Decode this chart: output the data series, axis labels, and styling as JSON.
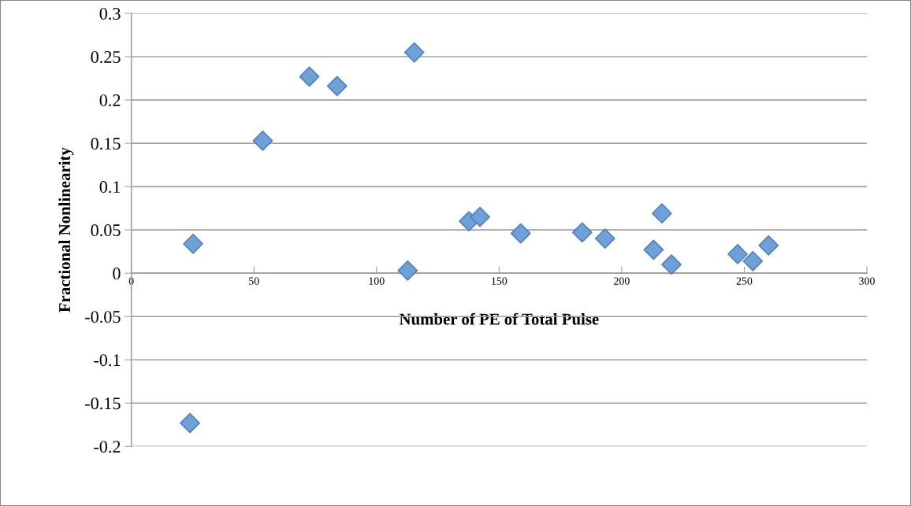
{
  "chart_data": {
    "type": "scatter",
    "xlabel": "Number of PE of Total Pulse",
    "ylabel": "Fractional Nonlinearity",
    "x": [
      25.2,
      23.9,
      53.6,
      72.6,
      83.9,
      115.4,
      112.7,
      137.7,
      142.2,
      158.8,
      183.9,
      193.2,
      216.4,
      213,
      220.3,
      247.3,
      253.5,
      259.9
    ],
    "values": [
      0.034,
      -0.173,
      0.153,
      0.227,
      0.216,
      0.255,
      0.003,
      0.06,
      0.065,
      0.046,
      0.047,
      0.04,
      0.069,
      0.027,
      0.01,
      0.022,
      0.014,
      0.032
    ],
    "color": "#6fa1d9",
    "marker": "diamond",
    "xlim": [
      0,
      300
    ],
    "xticks": [
      0,
      50,
      100,
      150,
      200,
      250,
      300
    ],
    "ylim": [
      -0.2,
      0.3
    ],
    "yticks": [
      -0.2,
      -0.15,
      -0.1,
      -0.05,
      0,
      0.05,
      0.1,
      0.15,
      0.2,
      0.25,
      0.3
    ],
    "grid": "y",
    "legend": false
  }
}
